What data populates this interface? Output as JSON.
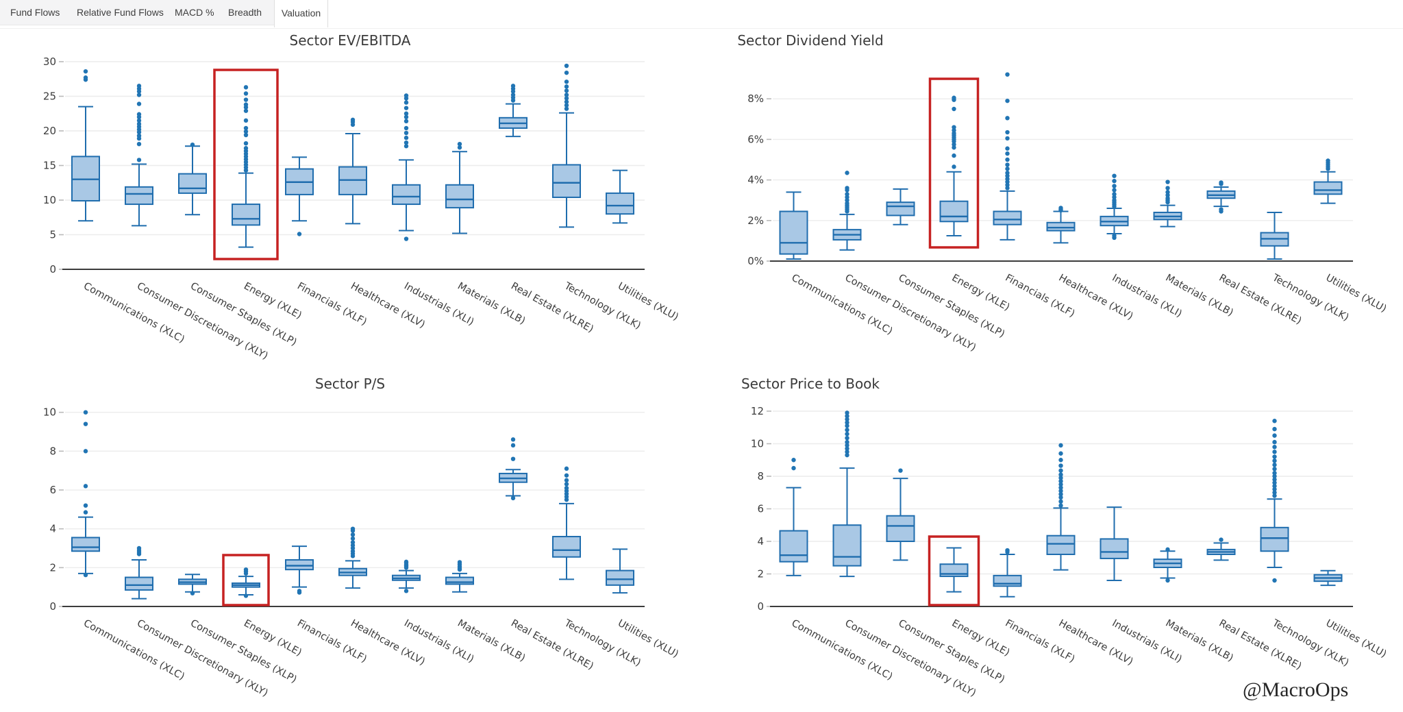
{
  "tab_bar": {
    "tabs": [
      {
        "label": "Fund Flows",
        "active": false
      },
      {
        "label": "Relative Fund Flows",
        "active": false
      },
      {
        "label": "MACD %",
        "active": false
      },
      {
        "label": "Breadth",
        "active": false
      },
      {
        "label": "Valuation",
        "active": true
      }
    ]
  },
  "watermark": {
    "text": "@MacroOps"
  },
  "colors": {
    "box_fill": "#a9c8e5",
    "box_stroke": "#1f6dae",
    "outlier": "#2175b4",
    "highlight": "#c62222",
    "grid": "#ececec",
    "tick": "#bbbbbb",
    "axis": "#3c3c3c"
  },
  "chart_data": [
    {
      "type": "box",
      "id": "ev-ebitda",
      "title": "Sector EV/EBITDA",
      "ylim": [
        0,
        30
      ],
      "yticks": [
        0,
        5,
        10,
        15,
        20,
        25,
        30
      ],
      "ytick_suffix": "",
      "grid": true,
      "legend": "none",
      "highlight_category": "Energy (XLE)",
      "series": [
        {
          "category": "Communications (XLC)",
          "whisker_low": 7.0,
          "q1": 9.9,
          "median": 13.0,
          "q3": 16.3,
          "whisker_high": 23.5,
          "outliers": [
            27.4,
            27.7,
            28.6
          ]
        },
        {
          "category": "Consumer Discretionary (XLY)",
          "whisker_low": 6.3,
          "q1": 9.4,
          "median": 10.9,
          "q3": 11.9,
          "whisker_high": 15.2,
          "outliers": [
            15.8,
            18.1,
            18.9,
            19.3,
            19.8,
            20.2,
            20.6,
            21.0,
            21.5,
            22.0,
            22.4,
            23.9,
            25.2,
            25.7,
            26.1,
            26.5
          ]
        },
        {
          "category": "Consumer Staples (XLP)",
          "whisker_low": 7.9,
          "q1": 11.0,
          "median": 11.7,
          "q3": 13.8,
          "whisker_high": 17.8,
          "outliers": [
            18.0
          ]
        },
        {
          "category": "Energy (XLE)",
          "whisker_low": 3.2,
          "q1": 6.4,
          "median": 7.3,
          "q3": 9.4,
          "whisker_high": 13.9,
          "outliers": [
            14.3,
            14.7,
            15.1,
            15.5,
            15.9,
            16.3,
            16.7,
            17.1,
            17.5,
            18.2,
            19.4,
            19.9,
            20.4,
            21.5,
            22.9,
            23.4,
            23.8,
            24.5,
            25.4,
            26.3
          ]
        },
        {
          "category": "Financials (XLF)",
          "whisker_low": 7.0,
          "q1": 10.8,
          "median": 12.6,
          "q3": 14.5,
          "whisker_high": 16.2,
          "outliers": [
            5.1
          ]
        },
        {
          "category": "Healthcare (XLV)",
          "whisker_low": 6.6,
          "q1": 10.8,
          "median": 12.9,
          "q3": 14.8,
          "whisker_high": 19.6,
          "outliers": [
            20.9,
            21.3,
            21.6
          ]
        },
        {
          "category": "Industrials (XLI)",
          "whisker_low": 5.6,
          "q1": 9.4,
          "median": 10.5,
          "q3": 12.2,
          "whisker_high": 15.8,
          "outliers": [
            4.4,
            17.8,
            18.3,
            19.0,
            19.7,
            20.4,
            21.4,
            22.0,
            22.5,
            23.3,
            24.1,
            24.7,
            25.1
          ]
        },
        {
          "category": "Materials (XLB)",
          "whisker_low": 5.2,
          "q1": 8.9,
          "median": 10.1,
          "q3": 12.2,
          "whisker_high": 17.0,
          "outliers": [
            17.6,
            18.1
          ]
        },
        {
          "category": "Real Estate (XLRE)",
          "whisker_low": 19.2,
          "q1": 20.4,
          "median": 21.1,
          "q3": 21.9,
          "whisker_high": 23.9,
          "outliers": [
            24.4,
            24.8,
            25.2,
            25.7,
            26.1,
            26.5
          ]
        },
        {
          "category": "Technology (XLK)",
          "whisker_low": 6.1,
          "q1": 10.4,
          "median": 12.5,
          "q3": 15.1,
          "whisker_high": 22.6,
          "outliers": [
            23.2,
            23.7,
            24.2,
            24.7,
            25.2,
            25.8,
            26.4,
            27.1,
            28.4,
            29.4
          ]
        },
        {
          "category": "Utilities (XLU)",
          "whisker_low": 6.7,
          "q1": 8.0,
          "median": 9.2,
          "q3": 11.0,
          "whisker_high": 14.3,
          "outliers": []
        }
      ]
    },
    {
      "type": "box",
      "id": "dividend-yield",
      "title": "Sector Dividend Yield",
      "ylim": [
        0,
        9.6
      ],
      "yticks": [
        0,
        2,
        4,
        6,
        8
      ],
      "ytick_suffix": "%",
      "grid": true,
      "legend": "none",
      "highlight_category": "Energy (XLE)",
      "series": [
        {
          "category": "Communications (XLC)",
          "whisker_low": 0.1,
          "q1": 0.35,
          "median": 0.9,
          "q3": 2.45,
          "whisker_high": 3.4,
          "outliers": []
        },
        {
          "category": "Consumer Discretionary (XLY)",
          "whisker_low": 0.55,
          "q1": 1.05,
          "median": 1.3,
          "q3": 1.55,
          "whisker_high": 2.3,
          "outliers": [
            2.45,
            2.55,
            2.65,
            2.75,
            2.85,
            3.0,
            3.15,
            3.3,
            3.5,
            3.6,
            4.35
          ]
        },
        {
          "category": "Consumer Staples (XLP)",
          "whisker_low": 1.8,
          "q1": 2.25,
          "median": 2.7,
          "q3": 2.9,
          "whisker_high": 3.55,
          "outliers": []
        },
        {
          "category": "Energy (XLE)",
          "whisker_low": 1.25,
          "q1": 1.95,
          "median": 2.2,
          "q3": 2.95,
          "whisker_high": 4.4,
          "outliers": [
            4.65,
            5.2,
            5.6,
            5.75,
            5.9,
            6.0,
            6.1,
            6.2,
            6.3,
            6.45,
            6.6,
            7.5,
            7.95,
            8.05
          ]
        },
        {
          "category": "Financials (XLF)",
          "whisker_low": 1.05,
          "q1": 1.8,
          "median": 2.05,
          "q3": 2.45,
          "whisker_high": 3.45,
          "outliers": [
            3.6,
            3.75,
            3.9,
            4.05,
            4.2,
            4.35,
            4.55,
            4.75,
            5.0,
            5.3,
            5.55,
            6.05,
            6.35,
            7.05,
            7.9,
            9.2
          ]
        },
        {
          "category": "Healthcare (XLV)",
          "whisker_low": 0.9,
          "q1": 1.5,
          "median": 1.65,
          "q3": 1.9,
          "whisker_high": 2.45,
          "outliers": [
            2.5,
            2.55,
            2.62
          ]
        },
        {
          "category": "Industrials (XLI)",
          "whisker_low": 1.35,
          "q1": 1.75,
          "median": 1.95,
          "q3": 2.2,
          "whisker_high": 2.6,
          "outliers": [
            1.15,
            1.25,
            2.7,
            2.8,
            2.9,
            3.0,
            3.15,
            3.3,
            3.5,
            3.7,
            3.95,
            4.2
          ]
        },
        {
          "category": "Materials (XLB)",
          "whisker_low": 1.7,
          "q1": 2.05,
          "median": 2.2,
          "q3": 2.4,
          "whisker_high": 2.75,
          "outliers": [
            2.9,
            3.0,
            3.1,
            3.25,
            3.4,
            3.6,
            3.9
          ]
        },
        {
          "category": "Real Estate (XLRE)",
          "whisker_low": 2.7,
          "q1": 3.1,
          "median": 3.25,
          "q3": 3.45,
          "whisker_high": 3.65,
          "outliers": [
            2.45,
            2.55,
            3.8,
            3.87
          ]
        },
        {
          "category": "Technology (XLK)",
          "whisker_low": 0.1,
          "q1": 0.75,
          "median": 1.1,
          "q3": 1.4,
          "whisker_high": 2.4,
          "outliers": []
        },
        {
          "category": "Utilities (XLU)",
          "whisker_low": 2.85,
          "q1": 3.3,
          "median": 3.5,
          "q3": 3.9,
          "whisker_high": 4.4,
          "outliers": [
            4.55,
            4.65,
            4.75,
            4.85,
            4.95
          ]
        }
      ]
    },
    {
      "type": "box",
      "id": "ps",
      "title": "Sector P/S",
      "ylim": [
        0,
        10.3
      ],
      "yticks": [
        0,
        2,
        4,
        6,
        8,
        10
      ],
      "ytick_suffix": "",
      "grid": true,
      "legend": "none",
      "highlight_category": "Energy (XLE)",
      "series": [
        {
          "category": "Communications (XLC)",
          "whisker_low": 1.7,
          "q1": 2.85,
          "median": 3.05,
          "q3": 3.55,
          "whisker_high": 4.6,
          "outliers": [
            1.62,
            4.85,
            5.2,
            6.2,
            8.0,
            9.4,
            10.0
          ]
        },
        {
          "category": "Consumer Discretionary (XLY)",
          "whisker_low": 0.4,
          "q1": 0.85,
          "median": 1.1,
          "q3": 1.5,
          "whisker_high": 2.4,
          "outliers": [
            2.7,
            2.8,
            2.9,
            3.0
          ]
        },
        {
          "category": "Consumer Staples (XLP)",
          "whisker_low": 0.75,
          "q1": 1.15,
          "median": 1.25,
          "q3": 1.4,
          "whisker_high": 1.65,
          "outliers": [
            0.68
          ]
        },
        {
          "category": "Energy (XLE)",
          "whisker_low": 0.6,
          "q1": 1.0,
          "median": 1.1,
          "q3": 1.2,
          "whisker_high": 1.55,
          "outliers": [
            0.55,
            1.7,
            1.8,
            1.9
          ]
        },
        {
          "category": "Financials (XLF)",
          "whisker_low": 1.0,
          "q1": 1.9,
          "median": 2.1,
          "q3": 2.4,
          "whisker_high": 3.1,
          "outliers": [
            0.72,
            0.8
          ]
        },
        {
          "category": "Healthcare (XLV)",
          "whisker_low": 0.95,
          "q1": 1.6,
          "median": 1.75,
          "q3": 1.95,
          "whisker_high": 2.35,
          "outliers": [
            2.6,
            2.72,
            2.85,
            3.0,
            3.15,
            3.3,
            3.5,
            3.7,
            3.9,
            4.0
          ]
        },
        {
          "category": "Industrials (XLI)",
          "whisker_low": 0.95,
          "q1": 1.35,
          "median": 1.45,
          "q3": 1.6,
          "whisker_high": 1.85,
          "outliers": [
            0.8,
            2.0,
            2.08,
            2.15,
            2.25,
            2.3
          ]
        },
        {
          "category": "Materials (XLB)",
          "whisker_low": 0.75,
          "q1": 1.15,
          "median": 1.25,
          "q3": 1.5,
          "whisker_high": 1.7,
          "outliers": [
            1.9,
            1.98,
            2.07,
            2.17,
            2.28
          ]
        },
        {
          "category": "Real Estate (XLRE)",
          "whisker_low": 5.7,
          "q1": 6.4,
          "median": 6.6,
          "q3": 6.85,
          "whisker_high": 7.05,
          "outliers": [
            5.58,
            7.6,
            8.3,
            8.6
          ]
        },
        {
          "category": "Technology (XLK)",
          "whisker_low": 1.4,
          "q1": 2.55,
          "median": 2.9,
          "q3": 3.6,
          "whisker_high": 5.3,
          "outliers": [
            5.5,
            5.65,
            5.8,
            5.95,
            6.1,
            6.3,
            6.5,
            6.75,
            7.1
          ]
        },
        {
          "category": "Utilities (XLU)",
          "whisker_low": 0.7,
          "q1": 1.1,
          "median": 1.4,
          "q3": 1.85,
          "whisker_high": 2.95,
          "outliers": []
        }
      ]
    },
    {
      "type": "box",
      "id": "price-to-book",
      "title": "Sector Price to Book",
      "ylim": [
        0,
        12
      ],
      "yticks": [
        0,
        2,
        4,
        6,
        8,
        10,
        12
      ],
      "ytick_suffix": "",
      "grid": true,
      "legend": "none",
      "highlight_category": "Energy (XLE)",
      "series": [
        {
          "category": "Communications (XLC)",
          "whisker_low": 1.9,
          "q1": 2.75,
          "median": 3.15,
          "q3": 4.65,
          "whisker_high": 7.3,
          "outliers": [
            8.5,
            9.0
          ]
        },
        {
          "category": "Consumer Discretionary (XLY)",
          "whisker_low": 1.85,
          "q1": 2.5,
          "median": 3.05,
          "q3": 5.0,
          "whisker_high": 8.5,
          "outliers": [
            9.3,
            9.5,
            9.7,
            9.9,
            10.1,
            10.35,
            10.6,
            10.85,
            11.1,
            11.3,
            11.5,
            11.7,
            11.9
          ]
        },
        {
          "category": "Consumer Staples (XLP)",
          "whisker_low": 2.85,
          "q1": 4.0,
          "median": 4.95,
          "q3": 5.57,
          "whisker_high": 7.87,
          "outliers": [
            8.35
          ]
        },
        {
          "category": "Energy (XLE)",
          "whisker_low": 0.9,
          "q1": 1.85,
          "median": 2.0,
          "q3": 2.6,
          "whisker_high": 3.6,
          "outliers": []
        },
        {
          "category": "Financials (XLF)",
          "whisker_low": 0.6,
          "q1": 1.25,
          "median": 1.4,
          "q3": 1.9,
          "whisker_high": 3.2,
          "outliers": [
            3.35,
            3.45
          ]
        },
        {
          "category": "Healthcare (XLV)",
          "whisker_low": 2.25,
          "q1": 3.2,
          "median": 3.85,
          "q3": 4.35,
          "whisker_high": 6.05,
          "outliers": [
            6.2,
            6.45,
            6.7,
            6.9,
            7.1,
            7.3,
            7.5,
            7.7,
            7.9,
            8.1,
            8.35,
            8.65,
            9.0,
            9.4,
            9.9
          ]
        },
        {
          "category": "Industrials (XLI)",
          "whisker_low": 1.6,
          "q1": 2.95,
          "median": 3.35,
          "q3": 4.15,
          "whisker_high": 6.1,
          "outliers": []
        },
        {
          "category": "Materials (XLB)",
          "whisker_low": 1.75,
          "q1": 2.4,
          "median": 2.65,
          "q3": 2.9,
          "whisker_high": 3.4,
          "outliers": [
            1.6,
            3.5
          ]
        },
        {
          "category": "Real Estate (XLRE)",
          "whisker_low": 2.85,
          "q1": 3.2,
          "median": 3.35,
          "q3": 3.5,
          "whisker_high": 3.9,
          "outliers": [
            4.1
          ]
        },
        {
          "category": "Technology (XLK)",
          "whisker_low": 2.4,
          "q1": 3.4,
          "median": 4.2,
          "q3": 4.85,
          "whisker_high": 6.6,
          "outliers": [
            1.6,
            6.8,
            7.0,
            7.2,
            7.4,
            7.6,
            7.8,
            8.0,
            8.2,
            8.45,
            8.7,
            8.95,
            9.2,
            9.5,
            9.8,
            10.1,
            10.5,
            10.9,
            11.4
          ]
        },
        {
          "category": "Utilities (XLU)",
          "whisker_low": 1.3,
          "q1": 1.55,
          "median": 1.75,
          "q3": 1.95,
          "whisker_high": 2.2,
          "outliers": []
        }
      ]
    }
  ]
}
